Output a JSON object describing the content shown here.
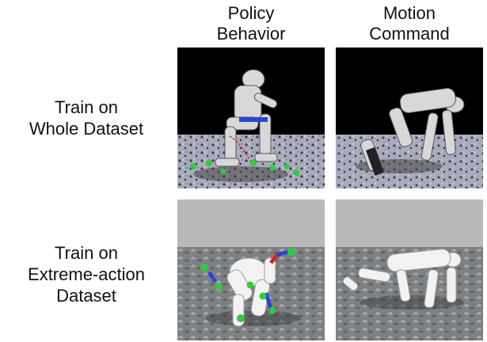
{
  "columns": [
    {
      "line1": "Policy",
      "line2": "Behavior"
    },
    {
      "line1": "Motion",
      "line2": "Command"
    }
  ],
  "rows": [
    {
      "lines": [
        "Train on",
        "Whole Dataset"
      ]
    },
    {
      "lines": [
        "Train on",
        "Extreme-action",
        "Dataset"
      ]
    }
  ]
}
